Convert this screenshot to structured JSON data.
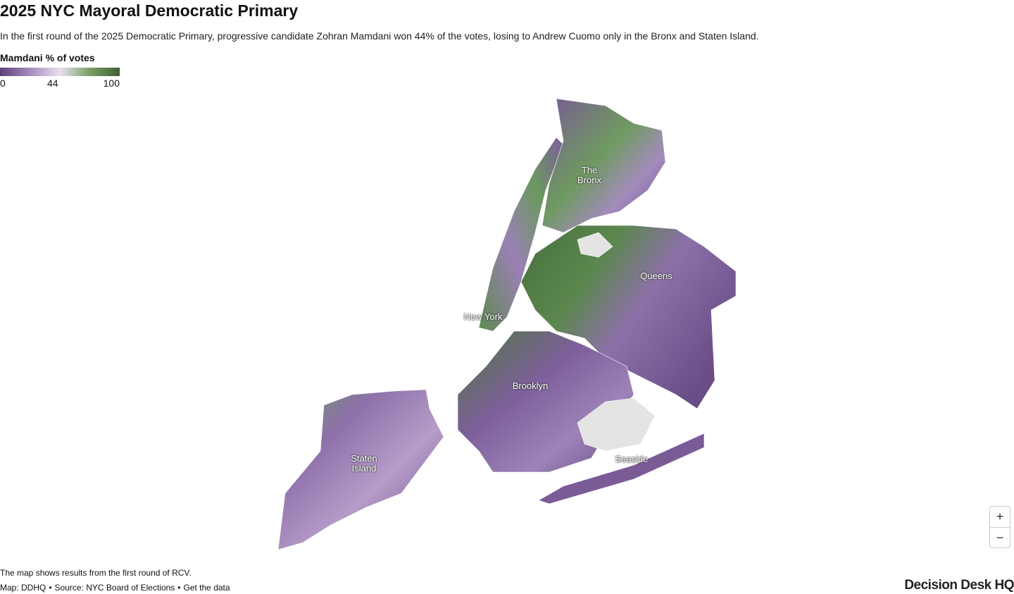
{
  "header": {
    "title": "2025 NYC Mayoral Democratic Primary",
    "subtitle": "In the first round of the 2025 Democratic Primary, progressive candidate Zohran Mamdani won 44% of the votes, losing to Andrew Cuomo only in the Bronx and Staten Island."
  },
  "legend": {
    "title": "Mamdani % of votes",
    "range": [
      0,
      100
    ],
    "ticks": [
      0,
      44,
      100
    ],
    "colors": [
      "#5e3f7a",
      "#a58bbd",
      "#e8e0ee",
      "#7aa066",
      "#3f5f36"
    ]
  },
  "map": {
    "labels": [
      "The Bronx",
      "Queens",
      "New York",
      "Brooklyn",
      "Staten Island",
      "Seaside"
    ]
  },
  "controls": {
    "zoom_in": "+",
    "zoom_out": "−"
  },
  "footer": {
    "note": "The map shows results from the first round of RCV.",
    "credits": [
      "Map: DDHQ",
      "•",
      "Source: NYC Board of Elections",
      "•",
      "Get the data"
    ],
    "logo": "Decision Desk HQ"
  }
}
